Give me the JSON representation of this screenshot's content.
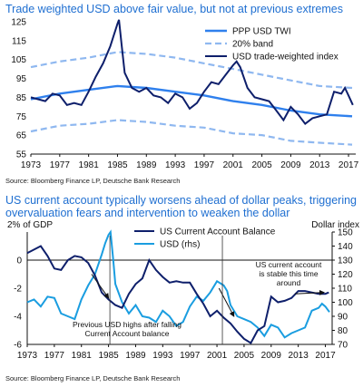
{
  "chart_data": [
    {
      "type": "line",
      "title": "Trade weighted USD above fair value, but not at previous extremes",
      "source": "Source: Bloomberg Finance LP, Deutsche Bank Research",
      "xlim": [
        1973,
        2018
      ],
      "ylim": [
        55,
        125
      ],
      "yticks": [
        125,
        115,
        105,
        95,
        85,
        75,
        65,
        55
      ],
      "xticks": [
        "1973",
        "1977",
        "1981",
        "1985",
        "1989",
        "1993",
        "1997",
        "2001",
        "2005",
        "2009",
        "2013",
        "2017"
      ],
      "grid": false,
      "legend_position": "top-right",
      "colors": {
        "ppp": "#2f80ed",
        "band": "#8fb8f0",
        "usd": "#0e1f6b"
      },
      "series": [
        {
          "name": "PPP USD TWI",
          "x": [
            1973,
            1977,
            1981,
            1985,
            1989,
            1993,
            1997,
            2001,
            2005,
            2009,
            2013,
            2017.5
          ],
          "values": [
            84,
            87,
            89,
            91,
            90,
            88,
            86,
            83,
            81,
            78,
            76,
            75
          ]
        },
        {
          "name": "20% band",
          "band": "upper",
          "x": [
            1973,
            1977,
            1981,
            1985,
            1989,
            1993,
            1997,
            2001,
            2005,
            2009,
            2013,
            2017.5
          ],
          "values": [
            101,
            104,
            106,
            109,
            108,
            106,
            103,
            100,
            97,
            94,
            91,
            90
          ]
        },
        {
          "name": "",
          "band": "lower",
          "x": [
            1973,
            1977,
            1981,
            1985,
            1989,
            1993,
            1997,
            2001,
            2005,
            2009,
            2013,
            2017.5
          ],
          "values": [
            67,
            70,
            71,
            73,
            72,
            70,
            69,
            66,
            65,
            62,
            61,
            60
          ]
        },
        {
          "name": "USD trade-weighted index",
          "x": [
            1973,
            1974,
            1975,
            1976,
            1977,
            1978,
            1979,
            1980,
            1981,
            1982,
            1983,
            1984,
            1984.5,
            1985,
            1985.2,
            1985.6,
            1986,
            1987,
            1988,
            1989,
            1990,
            1991,
            1992,
            1993,
            1994,
            1995,
            1996,
            1997,
            1998,
            1999,
            2000,
            2001,
            2001.5,
            2002,
            2003,
            2004,
            2005,
            2006,
            2007,
            2008,
            2009,
            2010,
            2011,
            2012,
            2013,
            2014,
            2015,
            2016,
            2016.5,
            2017,
            2017.6
          ],
          "values": [
            85,
            84,
            83,
            87,
            86,
            81,
            82,
            81,
            88,
            96,
            103,
            112,
            118,
            124,
            126,
            112,
            98,
            90,
            88,
            90,
            86,
            85,
            82,
            87,
            85,
            79,
            82,
            88,
            93,
            92,
            97,
            102,
            104,
            101,
            90,
            85,
            84,
            83,
            78,
            73,
            80,
            76,
            71,
            74,
            75,
            76,
            88,
            87,
            90,
            86,
            81
          ]
        }
      ]
    },
    {
      "type": "line",
      "title": "US current account typically worsens ahead of dollar peaks, triggering overvaluation fears and intervention to weaken the dollar",
      "source": "Source: Bloomberg Finance LP, Deutsche Bank Research",
      "ylabel_left": "2% of GDP",
      "ylabel_right": "Dollar index",
      "xlim": [
        1973,
        2018
      ],
      "ylim_left": [
        -6,
        2
      ],
      "ylim_right": [
        70,
        150
      ],
      "yticks_left": [
        0,
        -2,
        -4,
        -6
      ],
      "yticks_right": [
        150,
        140,
        130,
        120,
        110,
        100,
        90,
        80,
        70
      ],
      "xticks": [
        "1973",
        "1977",
        "1981",
        "1985",
        "1989",
        "1993",
        "1997",
        "2001",
        "2005",
        "2009",
        "2013",
        "2017"
      ],
      "grid": false,
      "legend_position": "top-center",
      "colors": {
        "ca": "#0e1f6b",
        "usd": "#1a9de0"
      },
      "series": [
        {
          "name": "US Current Account Balance",
          "axis": "left",
          "x": [
            1973,
            1975,
            1976,
            1977,
            1978,
            1979,
            1980,
            1981,
            1982,
            1983,
            1984,
            1985,
            1986,
            1987,
            1988,
            1989,
            1990,
            1991,
            1992,
            1993,
            1994,
            1995,
            1996,
            1997,
            1998,
            1999,
            2000,
            2001,
            2002,
            2003,
            2004,
            2005,
            2006,
            2007,
            2008,
            2009,
            2010,
            2011,
            2012,
            2013,
            2014,
            2015,
            2016,
            2017,
            2017.5
          ],
          "values": [
            0.5,
            1.0,
            0.3,
            -0.6,
            -0.7,
            0.0,
            0.3,
            0.2,
            -0.2,
            -1.1,
            -2.3,
            -2.8,
            -3.2,
            -3.4,
            -2.4,
            -1.7,
            -1.3,
            0.0,
            -0.7,
            -1.2,
            -1.6,
            -1.5,
            -1.6,
            -1.6,
            -2.4,
            -3.1,
            -4.0,
            -3.6,
            -4.1,
            -4.5,
            -5.1,
            -5.6,
            -5.9,
            -5.0,
            -4.7,
            -2.6,
            -3.0,
            -2.9,
            -2.7,
            -2.2,
            -2.2,
            -2.3,
            -2.4,
            -2.4,
            -2.3
          ]
        },
        {
          "name": "USD (rhs)",
          "axis": "right",
          "x": [
            1973,
            1974,
            1975,
            1976,
            1977,
            1978,
            1979,
            1980,
            1981,
            1982,
            1983,
            1984,
            1984.5,
            1985,
            1985.3,
            1985.7,
            1986,
            1987,
            1988,
            1989,
            1990,
            1991,
            1992,
            1993,
            1994,
            1995,
            1996,
            1997,
            1998,
            1999,
            2000,
            2001,
            2002,
            2002.5,
            2003,
            2004,
            2005,
            2006,
            2007,
            2008,
            2009,
            2010,
            2011,
            2012,
            2013,
            2014,
            2015,
            2016,
            2016.5,
            2017,
            2017.6
          ],
          "values": [
            100,
            102,
            97,
            104,
            103,
            92,
            90,
            88,
            102,
            112,
            120,
            134,
            142,
            148,
            150,
            130,
            113,
            100,
            92,
            98,
            90,
            89,
            86,
            94,
            90,
            83,
            86,
            97,
            104,
            101,
            107,
            115,
            112,
            108,
            98,
            90,
            88,
            86,
            82,
            76,
            84,
            82,
            75,
            78,
            80,
            82,
            94,
            96,
            99,
            97,
            93
          ]
        }
      ],
      "annotations": [
        {
          "text": [
            "Previous USD highs after falling",
            "Current Account balance"
          ]
        },
        {
          "text": [
            "US current account",
            "is stable this time",
            "around"
          ]
        }
      ]
    }
  ]
}
